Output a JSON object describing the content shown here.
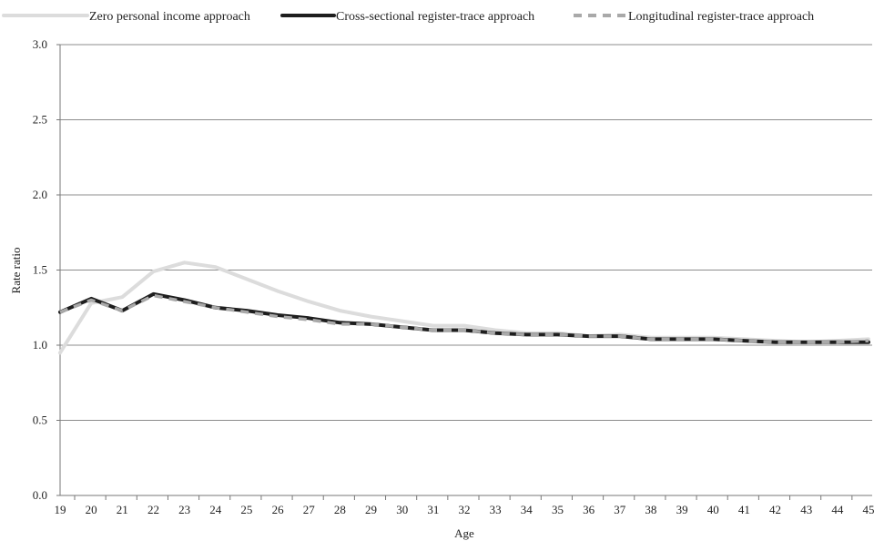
{
  "chart_data": {
    "type": "line",
    "title": "",
    "xlabel": "Age",
    "ylabel": "Rate ratio",
    "x": [
      19,
      20,
      21,
      22,
      23,
      24,
      25,
      26,
      27,
      28,
      29,
      30,
      31,
      32,
      33,
      34,
      35,
      36,
      37,
      38,
      39,
      40,
      41,
      42,
      43,
      44,
      45
    ],
    "ylim": [
      0,
      3.0
    ],
    "yticks": [
      "0.0",
      "0.5",
      "1.0",
      "1.5",
      "2.0",
      "2.5",
      "3.0"
    ],
    "grid": true,
    "legend_position": "top",
    "series": [
      {
        "name": "Zero personal income approach",
        "color": "#dcdcdc",
        "style": "solid",
        "values": [
          0.95,
          1.28,
          1.32,
          1.49,
          1.55,
          1.52,
          1.44,
          1.36,
          1.29,
          1.23,
          1.19,
          1.16,
          1.13,
          1.13,
          1.1,
          1.08,
          1.08,
          1.06,
          1.07,
          1.05,
          1.05,
          1.05,
          1.04,
          1.03,
          1.02,
          1.03,
          1.04
        ]
      },
      {
        "name": "Cross-sectional register-trace approach",
        "color": "#1e1e1e",
        "style": "solid",
        "values": [
          1.22,
          1.31,
          1.23,
          1.34,
          1.3,
          1.25,
          1.23,
          1.2,
          1.18,
          1.15,
          1.14,
          1.12,
          1.1,
          1.1,
          1.08,
          1.07,
          1.07,
          1.06,
          1.06,
          1.04,
          1.04,
          1.04,
          1.03,
          1.02,
          1.02,
          1.02,
          1.02
        ]
      },
      {
        "name": "Longitudinal register-trace approach",
        "color": "#a9a9a9",
        "style": "dashed",
        "values": [
          1.22,
          1.3,
          1.23,
          1.33,
          1.29,
          1.25,
          1.22,
          1.19,
          1.17,
          1.14,
          1.14,
          1.12,
          1.1,
          1.1,
          1.08,
          1.07,
          1.07,
          1.06,
          1.06,
          1.04,
          1.04,
          1.04,
          1.03,
          1.02,
          1.02,
          1.02,
          1.03
        ]
      }
    ]
  }
}
